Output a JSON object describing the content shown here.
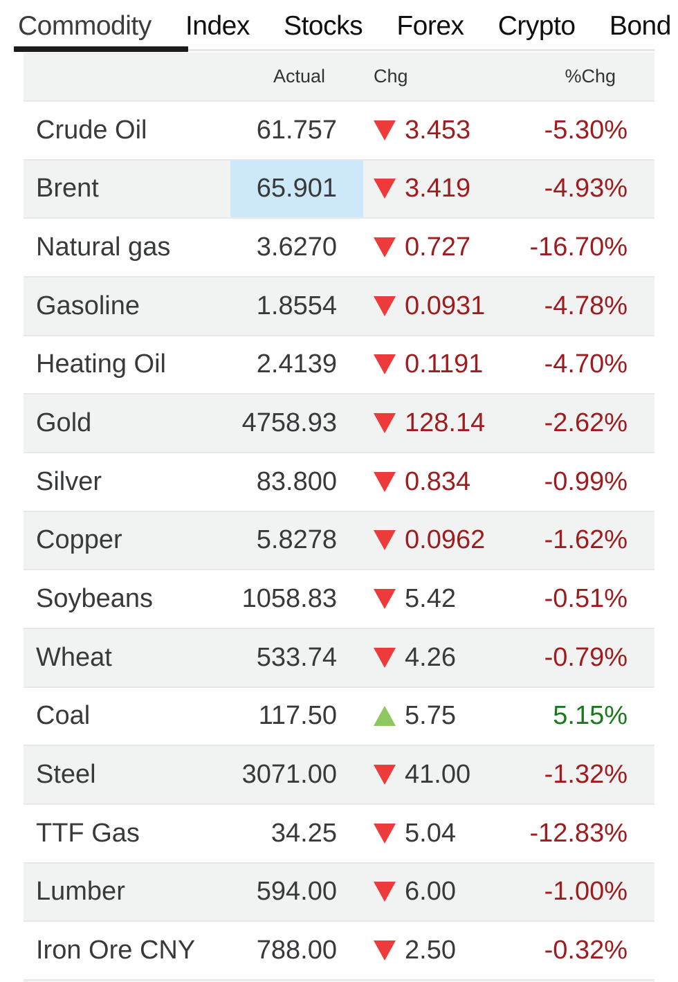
{
  "tabs": {
    "items": [
      {
        "label": "Commodity",
        "active": true
      },
      {
        "label": "Index",
        "active": false
      },
      {
        "label": "Stocks",
        "active": false
      },
      {
        "label": "Forex",
        "active": false
      },
      {
        "label": "Crypto",
        "active": false
      },
      {
        "label": "Bond",
        "active": false
      }
    ]
  },
  "table": {
    "headers": {
      "name": "",
      "actual": "Actual",
      "chg": "Chg",
      "pchg": "%Chg"
    },
    "rows": [
      {
        "name": "Crude Oil",
        "actual": "61.757",
        "chg": "3.453",
        "pchg": "-5.30%",
        "direction": "down",
        "chg_tone": "red",
        "pchg_tone": "red",
        "actual_highlighted": false
      },
      {
        "name": "Brent",
        "actual": "65.901",
        "chg": "3.419",
        "pchg": "-4.93%",
        "direction": "down",
        "chg_tone": "red",
        "pchg_tone": "red",
        "actual_highlighted": true
      },
      {
        "name": "Natural gas",
        "actual": "3.6270",
        "chg": "0.727",
        "pchg": "-16.70%",
        "direction": "down",
        "chg_tone": "red",
        "pchg_tone": "red",
        "actual_highlighted": false
      },
      {
        "name": "Gasoline",
        "actual": "1.8554",
        "chg": "0.0931",
        "pchg": "-4.78%",
        "direction": "down",
        "chg_tone": "red",
        "pchg_tone": "red",
        "actual_highlighted": false
      },
      {
        "name": "Heating Oil",
        "actual": "2.4139",
        "chg": "0.1191",
        "pchg": "-4.70%",
        "direction": "down",
        "chg_tone": "red",
        "pchg_tone": "red",
        "actual_highlighted": false
      },
      {
        "name": "Gold",
        "actual": "4758.93",
        "chg": "128.14",
        "pchg": "-2.62%",
        "direction": "down",
        "chg_tone": "red",
        "pchg_tone": "red",
        "actual_highlighted": false
      },
      {
        "name": "Silver",
        "actual": "83.800",
        "chg": "0.834",
        "pchg": "-0.99%",
        "direction": "down",
        "chg_tone": "red",
        "pchg_tone": "red",
        "actual_highlighted": false
      },
      {
        "name": "Copper",
        "actual": "5.8278",
        "chg": "0.0962",
        "pchg": "-1.62%",
        "direction": "down",
        "chg_tone": "red",
        "pchg_tone": "red",
        "actual_highlighted": false
      },
      {
        "name": "Soybeans",
        "actual": "1058.83",
        "chg": "5.42",
        "pchg": "-0.51%",
        "direction": "down",
        "chg_tone": "dark",
        "pchg_tone": "red",
        "actual_highlighted": false
      },
      {
        "name": "Wheat",
        "actual": "533.74",
        "chg": "4.26",
        "pchg": "-0.79%",
        "direction": "down",
        "chg_tone": "dark",
        "pchg_tone": "red",
        "actual_highlighted": false
      },
      {
        "name": "Coal",
        "actual": "117.50",
        "chg": "5.75",
        "pchg": "5.15%",
        "direction": "up",
        "chg_tone": "dark",
        "pchg_tone": "green",
        "actual_highlighted": false
      },
      {
        "name": "Steel",
        "actual": "3071.00",
        "chg": "41.00",
        "pchg": "-1.32%",
        "direction": "down",
        "chg_tone": "dark",
        "pchg_tone": "red",
        "actual_highlighted": false
      },
      {
        "name": "TTF Gas",
        "actual": "34.25",
        "chg": "5.04",
        "pchg": "-12.83%",
        "direction": "down",
        "chg_tone": "dark",
        "pchg_tone": "red",
        "actual_highlighted": false
      },
      {
        "name": "Lumber",
        "actual": "594.00",
        "chg": "6.00",
        "pchg": "-1.00%",
        "direction": "down",
        "chg_tone": "dark",
        "pchg_tone": "red",
        "actual_highlighted": false
      },
      {
        "name": "Iron Ore CNY",
        "actual": "788.00",
        "chg": "2.50",
        "pchg": "-0.32%",
        "direction": "down",
        "chg_tone": "dark",
        "pchg_tone": "red",
        "actual_highlighted": false
      }
    ]
  },
  "colors": {
    "negative_triangle": "#ed3b3b",
    "positive_triangle": "#8cc760",
    "negative_text": "#9e1b1e",
    "positive_text": "#1a7a1b",
    "text_primary": "#37393b",
    "row_alt_bg": "#f1f2f2",
    "actual_highlight_bg": "#cde8f8",
    "line": "#e7e8e8",
    "tab_line": "#e3e5e6"
  }
}
